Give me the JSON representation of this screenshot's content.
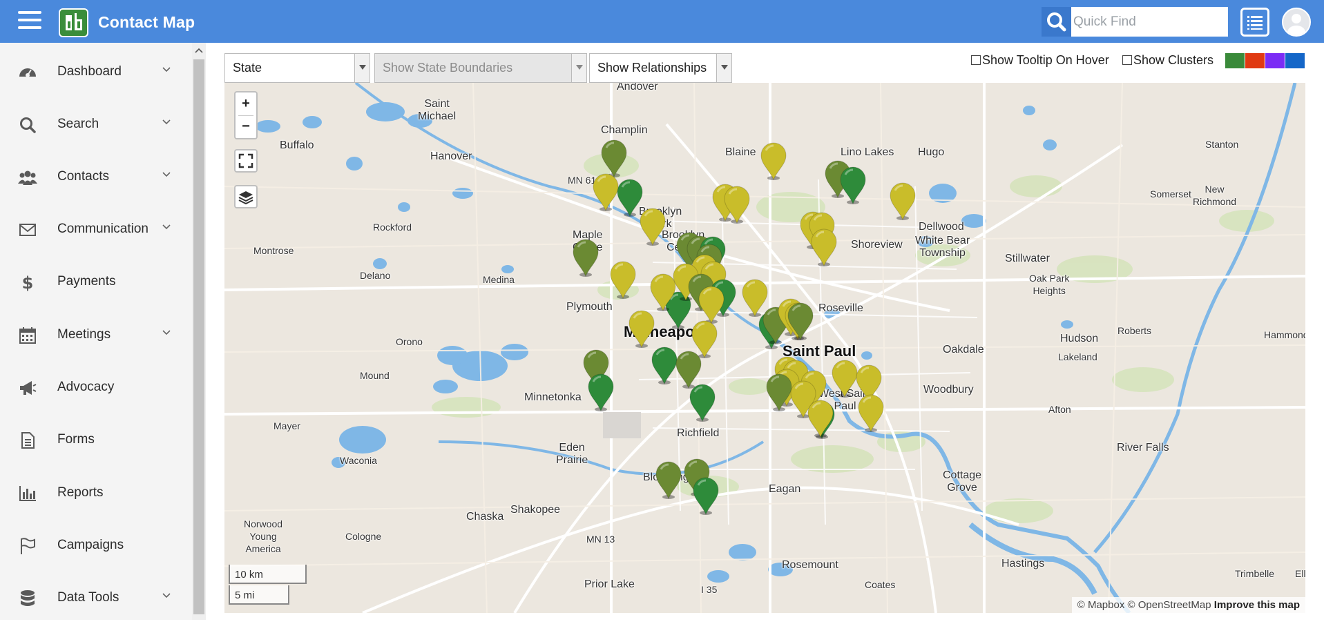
{
  "app": {
    "title": "Contact Map",
    "search_placeholder": "Quick Find",
    "brand_color": "#4a89dc",
    "icons": {
      "menu": "hamburger-icon",
      "search": "search-icon",
      "list": "list-view-icon",
      "user": "user-avatar-icon"
    }
  },
  "sidebar": {
    "items": [
      {
        "label": "Dashboard",
        "icon": "dashboard-gauge-icon",
        "expandable": true
      },
      {
        "label": "Search",
        "icon": "search-icon",
        "expandable": true
      },
      {
        "label": "Contacts",
        "icon": "users-icon",
        "expandable": true
      },
      {
        "label": "Communication",
        "icon": "envelope-icon",
        "expandable": true
      },
      {
        "label": "Payments",
        "icon": "dollar-icon",
        "expandable": false
      },
      {
        "label": "Meetings",
        "icon": "calendar-icon",
        "expandable": true
      },
      {
        "label": "Advocacy",
        "icon": "megaphone-icon",
        "expandable": false
      },
      {
        "label": "Forms",
        "icon": "document-icon",
        "expandable": false
      },
      {
        "label": "Reports",
        "icon": "bar-chart-icon",
        "expandable": false
      },
      {
        "label": "Campaigns",
        "icon": "flag-icon",
        "expandable": false
      },
      {
        "label": "Data Tools",
        "icon": "database-icon",
        "expandable": true
      }
    ]
  },
  "toolbar": {
    "state_select": "State",
    "boundaries_select": "Show State Boundaries",
    "relationships_select": "Show Relationships",
    "tooltip_label": "Show Tooltip On Hover",
    "tooltip_checked": false,
    "clusters_label": "Show Clusters",
    "clusters_checked": false,
    "cluster_colors": [
      "#3a8a3a",
      "#e03a12",
      "#7b2cf5",
      "#1466c8"
    ]
  },
  "map": {
    "zoom_in": "+",
    "zoom_out": "−",
    "scale_km": "10 km",
    "scale_mi": "5 mi",
    "attribution_prefix": "© Mapbox © OpenStreetMap",
    "attribution_link": "Improve this map",
    "marker_colors": {
      "yellow": "#c9bd2a",
      "olive": "#6b8a33",
      "green": "#2e8b3a"
    },
    "places": [
      {
        "name": "Andover"
      },
      {
        "name": "Saint\nMichael"
      },
      {
        "name": "Champlin"
      },
      {
        "name": "Buffalo"
      },
      {
        "name": "Hanover"
      },
      {
        "name": "Blaine"
      },
      {
        "name": "Lino Lakes"
      },
      {
        "name": "Hugo"
      },
      {
        "name": "Stanton"
      },
      {
        "name": "Somerset"
      },
      {
        "name": "New\nRichmond"
      },
      {
        "name": "Brooklyn\nPark"
      },
      {
        "name": "Brooklyn\nCenter"
      },
      {
        "name": "Maple\nGrove"
      },
      {
        "name": "Rockford"
      },
      {
        "name": "Montrose"
      },
      {
        "name": "Delano"
      },
      {
        "name": "Medina"
      },
      {
        "name": "Shoreview"
      },
      {
        "name": "Dellwood"
      },
      {
        "name": "White Bear\nTownship"
      },
      {
        "name": "Stillwater"
      },
      {
        "name": "Oak Park\nHeights"
      },
      {
        "name": "Plymouth"
      },
      {
        "name": "Roseville"
      },
      {
        "name": "Minneapolis"
      },
      {
        "name": "Saint Paul"
      },
      {
        "name": "Orono"
      },
      {
        "name": "Oakdale"
      },
      {
        "name": "Roberts"
      },
      {
        "name": "Hudson"
      },
      {
        "name": "Lakeland"
      },
      {
        "name": "Hammond"
      },
      {
        "name": "Mound"
      },
      {
        "name": "Minnetonka"
      },
      {
        "name": "West Saint\nPaul"
      },
      {
        "name": "Woodbury"
      },
      {
        "name": "Afton"
      },
      {
        "name": "Mayer"
      },
      {
        "name": "Richfield"
      },
      {
        "name": "Waconia"
      },
      {
        "name": "Eden\nPrairie"
      },
      {
        "name": "Bloomington"
      },
      {
        "name": "Eagan"
      },
      {
        "name": "Cottage\nGrove"
      },
      {
        "name": "River Falls"
      },
      {
        "name": "Chaska"
      },
      {
        "name": "Shakopee"
      },
      {
        "name": "Norwood\nYoung\nAmerica"
      },
      {
        "name": "Cologne"
      },
      {
        "name": "Rosemount"
      },
      {
        "name": "Hastings"
      },
      {
        "name": "Prior Lake"
      },
      {
        "name": "Coates"
      },
      {
        "name": "Trimbelle"
      },
      {
        "name": "Ellsworth"
      },
      {
        "name": "MN 610"
      },
      {
        "name": "MN 13"
      },
      {
        "name": "I 35"
      }
    ]
  }
}
